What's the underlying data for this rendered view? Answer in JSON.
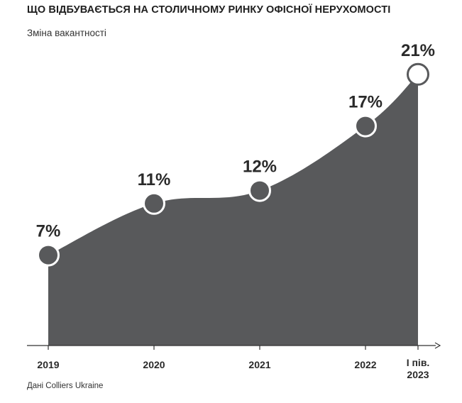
{
  "header": {
    "title": "ЩО ВІДБУВАЄТЬСЯ НА СТОЛИЧНОМУ РИНКУ ОФІСНОЇ НЕРУХОМОСТІ",
    "subtitle": "Зміна вакантності"
  },
  "footer": {
    "source": "Дані Colliers Ukraine"
  },
  "colors": {
    "area": "#58595b",
    "marker_fill": "#58595b",
    "marker_stroke": "#ffffff",
    "text": "#2a2a2a"
  },
  "chart_data": {
    "type": "area",
    "categories": [
      "2019",
      "2020",
      "2021",
      "2022",
      "І пів. 2023"
    ],
    "values": [
      7,
      11,
      12,
      17,
      21
    ],
    "data_labels": [
      "7%",
      "11%",
      "12%",
      "17%",
      "21%"
    ],
    "unit": "%",
    "title": "ЩО ВІДБУВАЄТЬСЯ НА СТОЛИЧНОМУ РИНКУ ОФІСНОЇ НЕРУХОМОСТІ",
    "subtitle": "Зміна вакантності",
    "ylim": [
      0,
      22
    ],
    "grid": false,
    "legend": "none"
  }
}
